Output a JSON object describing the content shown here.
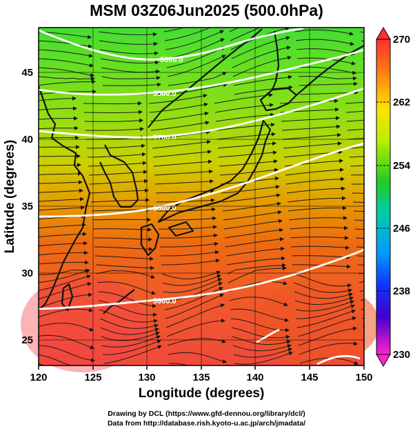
{
  "title": "MSM 03Z06Jun2025 (500.0hPa)",
  "map": {
    "xlabel": "Longitude (degrees)",
    "ylabel": "Latitude  (degrees)",
    "lon_range": [
      120,
      150
    ],
    "lat_range": [
      22.4,
      47.6
    ],
    "lon_ticks": [
      "120",
      "125",
      "130",
      "135",
      "140",
      "145",
      "150"
    ],
    "lat_ticks": [
      "25",
      "30",
      "35",
      "40",
      "45"
    ],
    "temperature_field_range": [
      230,
      270
    ],
    "contours": [
      {
        "label": "5600.0",
        "level": 5600
      },
      {
        "label": "5500.0",
        "level": 5500
      },
      {
        "label": "5700.0",
        "level": 5700
      },
      {
        "label": "5800.0",
        "level": 5800
      },
      {
        "label": "5900.0",
        "level": 5900
      }
    ]
  },
  "colorbar": {
    "ticks": [
      "270",
      "262",
      "254",
      "246",
      "238",
      "230"
    ],
    "min": 230,
    "max": 270
  },
  "credits": {
    "line1": "Drawing by DCL (https://www.gfd-dennou.org/library/dcl/)",
    "line2": "Data from http://database.rish.kyoto-u.ac.jp/arch/jmadata/"
  }
}
